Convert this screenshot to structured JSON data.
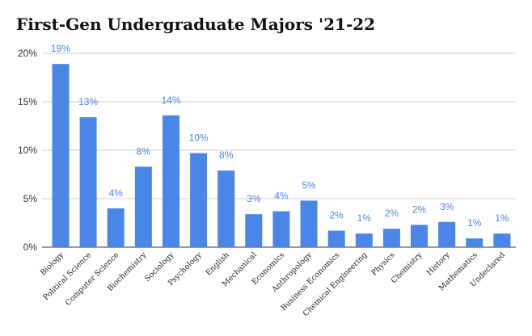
{
  "chart_data": {
    "type": "bar",
    "title": "First-Gen Undergraduate Majors '21-22",
    "xlabel": "",
    "ylabel": "",
    "ylim": [
      0,
      20
    ],
    "yticks": [
      "0%",
      "5%",
      "10%",
      "15%",
      "20%"
    ],
    "grid": true,
    "legend": "none",
    "bar_color": "#4a86e8",
    "categories": [
      "Biology",
      "Political Science",
      "Computer Science",
      "Biochemistry",
      "Sociology",
      "Psychology",
      "English",
      "Mechanical",
      "Economics",
      "Anthropology",
      "Business Economics",
      "Chemical Engineering",
      "Physics",
      "Chemistry",
      "History",
      "Mathematics",
      "Undeclared"
    ],
    "values": [
      18.9,
      13.4,
      4.0,
      8.3,
      13.6,
      9.7,
      7.9,
      3.4,
      3.7,
      4.8,
      1.7,
      1.4,
      1.9,
      2.3,
      2.6,
      0.9,
      1.4
    ],
    "data_labels": [
      "19%",
      "13%",
      "4%",
      "8%",
      "14%",
      "10%",
      "8%",
      "3%",
      "4%",
      "5%",
      "2%",
      "1%",
      "2%",
      "2%",
      "3%",
      "1%",
      "1%"
    ]
  }
}
